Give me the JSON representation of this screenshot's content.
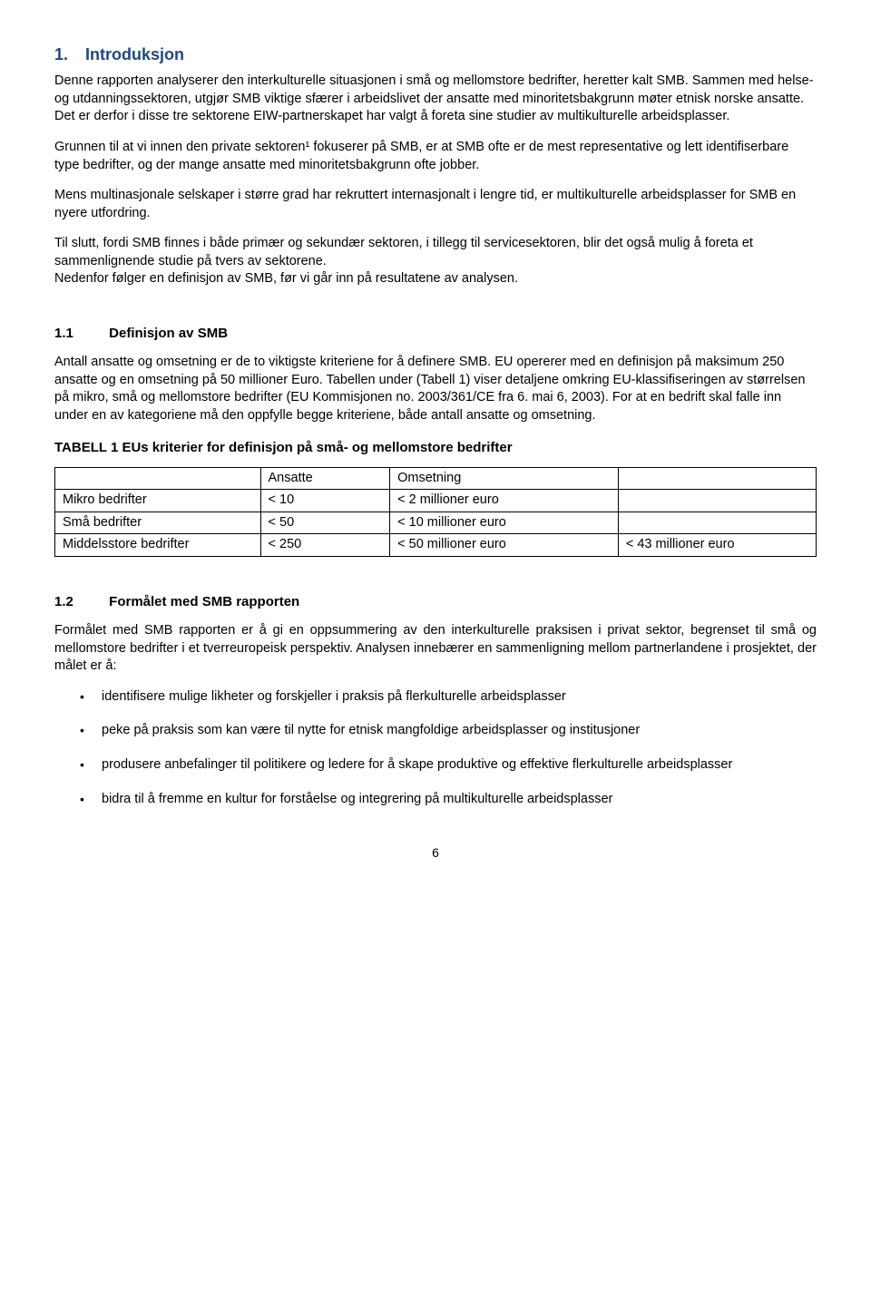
{
  "section1": {
    "number": "1.",
    "title": "Introduksjon",
    "p1": "Denne rapporten analyserer den interkulturelle situasjonen i små og mellomstore bedrifter, heretter kalt SMB. Sammen med helse- og utdanningssektoren, utgjør SMB viktige sfærer i arbeidslivet der ansatte med minoritetsbakgrunn møter etnisk norske ansatte. Det er derfor i disse tre sektorene EIW-partnerskapet har valgt å foreta sine studier av multikulturelle arbeidsplasser.",
    "p2": "Grunnen til at vi innen den private sektoren¹ fokuserer på SMB, er at SMB ofte er de mest representative og lett identifiserbare type bedrifter, og der mange ansatte med minoritetsbakgrunn ofte jobber.",
    "p3": "Mens multinasjonale selskaper i større grad har rekruttert internasjonalt i lengre tid, er multikulturelle arbeidsplasser for SMB en nyere utfordring.",
    "p4": "Til slutt, fordi SMB finnes i både primær og sekundær sektoren, i tillegg til servicesektoren, blir det også mulig å foreta et sammenlignende studie på tvers av sektorene.\nNedenfor følger en definisjon av SMB, før vi går inn på resultatene av analysen."
  },
  "section11": {
    "number": "1.1",
    "title": "Definisjon av SMB",
    "p1": "Antall ansatte og omsetning er de to viktigste kriteriene for å definere SMB. EU opererer med en definisjon på maksimum 250 ansatte og en omsetning på 50 millioner Euro. Tabellen under (Tabell 1) viser detaljene omkring EU-klassifiseringen av størrelsen på mikro, små og mellomstore bedrifter (EU Kommisjonen no. 2003/361/CE  fra 6. mai 6, 2003). For at en bedrift skal falle inn under en av kategoriene må den oppfylle begge kriteriene, både antall ansatte og omsetning.",
    "table_title": "TABELL 1  EUs kriterier for definisjon på små- og mellomstore bedrifter",
    "table": {
      "header": [
        "",
        "Ansatte",
        "Omsetning",
        ""
      ],
      "rows": [
        [
          "Mikro bedrifter",
          "< 10",
          "< 2 millioner euro",
          ""
        ],
        [
          "Små bedrifter",
          "< 50",
          "< 10 millioner euro",
          ""
        ],
        [
          "Middelsstore bedrifter",
          "< 250",
          "< 50 millioner euro",
          "< 43 millioner euro"
        ]
      ]
    }
  },
  "section12": {
    "number": "1.2",
    "title": "Formålet med SMB rapporten",
    "p1": "Formålet med SMB rapporten er å gi en oppsummering av den interkulturelle praksisen i privat sektor, begrenset til små og mellomstore bedrifter i et tverreuropeisk perspektiv. Analysen innebærer en sammenligning mellom partnerlandene i prosjektet, der målet er å:",
    "bullets": [
      "identifisere mulige likheter og forskjeller i praksis på flerkulturelle arbeidsplasser",
      "peke på praksis som kan være til nytte for etnisk mangfoldige arbeidsplasser og institusjoner",
      "produsere anbefalinger til politikere og ledere for å skape produktive og effektive flerkulturelle arbeidsplasser",
      "bidra til å fremme en kultur for forståelse og integrering på multikulturelle arbeidsplasser"
    ]
  },
  "page_number": "6"
}
